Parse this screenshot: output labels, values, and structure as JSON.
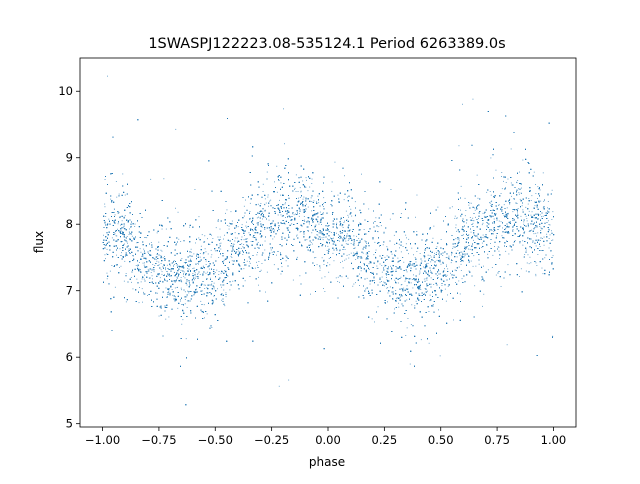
{
  "chart_data": {
    "type": "scatter",
    "title": "1SWASPJ122223.08-535124.1 Period 6263389.0s",
    "xlabel": "phase",
    "ylabel": "flux",
    "xlim": [
      -1.1,
      1.1
    ],
    "ylim": [
      4.95,
      10.5
    ],
    "xticks": [
      -1.0,
      -0.75,
      -0.5,
      -0.25,
      0.0,
      0.25,
      0.5,
      0.75,
      1.0
    ],
    "xtick_labels": [
      "−1.00",
      "−0.75",
      "−0.50",
      "−0.25",
      "0.00",
      "0.25",
      "0.50",
      "0.75",
      "1.00"
    ],
    "yticks": [
      5,
      6,
      7,
      8,
      9,
      10
    ],
    "ytick_labels": [
      "5",
      "6",
      "7",
      "8",
      "9",
      "10"
    ],
    "grid": false,
    "point_color": "#1f77b4",
    "series": [
      {
        "profile_phase": [
          0.0,
          0.1,
          0.2,
          0.3,
          0.4,
          0.5,
          0.6,
          0.7,
          0.8,
          0.9,
          1.0
        ],
        "profile_flux": [
          7.9,
          7.8,
          7.4,
          7.3,
          7.2,
          7.3,
          7.7,
          7.9,
          8.1,
          8.1,
          7.9
        ],
        "scatter_sd": 0.35,
        "n_points": 16000
      }
    ]
  }
}
